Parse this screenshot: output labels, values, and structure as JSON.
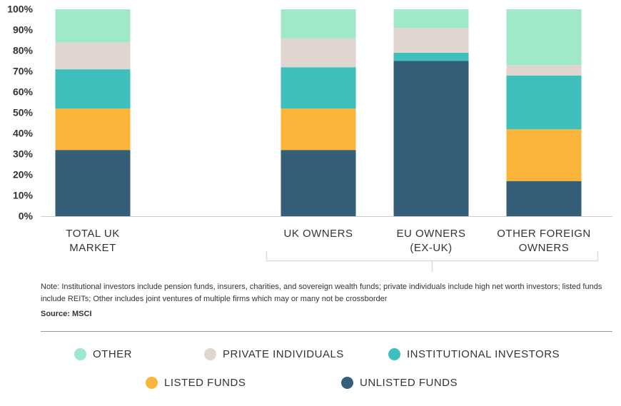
{
  "chart_data": {
    "type": "stacked_bar",
    "categories": [
      "TOTAL UK\nMARKET",
      null,
      "UK OWNERS",
      "EU OWNERS\n(EX-UK)",
      "OTHER FOREIGN\nOWNERS"
    ],
    "series": [
      {
        "name": "OTHER",
        "color": "#9fe8c8",
        "values": [
          16,
          null,
          14,
          9,
          27
        ]
      },
      {
        "name": "PRIVATE INDIVIDUALS",
        "color": "#e0d6cf",
        "values": [
          13,
          null,
          14,
          12,
          5
        ]
      },
      {
        "name": "INSTITUTIONAL INVESTORS",
        "color": "#3ebfbc",
        "values": [
          19,
          null,
          20,
          4,
          26
        ]
      },
      {
        "name": "LISTED FUNDS",
        "color": "#fbb43a",
        "values": [
          20,
          null,
          20,
          0,
          25
        ]
      },
      {
        "name": "UNLISTED FUNDS",
        "color": "#355e78",
        "values": [
          32,
          null,
          32,
          75,
          17
        ]
      }
    ],
    "ylim": [
      0,
      100
    ],
    "yticks": [
      {
        "value": 0,
        "label": "0%"
      },
      {
        "value": 10,
        "label": "10%"
      },
      {
        "value": 20,
        "label": "20%"
      },
      {
        "value": 30,
        "label": "30%"
      },
      {
        "value": 40,
        "label": "40%"
      },
      {
        "value": 50,
        "label": "50%"
      },
      {
        "value": 60,
        "label": "60%"
      },
      {
        "value": 70,
        "label": "70%"
      },
      {
        "value": 80,
        "label": "80%"
      },
      {
        "value": 90,
        "label": "90%"
      },
      {
        "value": 100,
        "label": "100%"
      }
    ],
    "note": "Note: Institutional investors include pension funds, insurers, charities, and sovereign wealth funds; private individuals include high net worth investors; listed funds include REITs; Other includes joint ventures of multiple firms which may or many not be crossborder",
    "source": "Source: MSCI"
  }
}
